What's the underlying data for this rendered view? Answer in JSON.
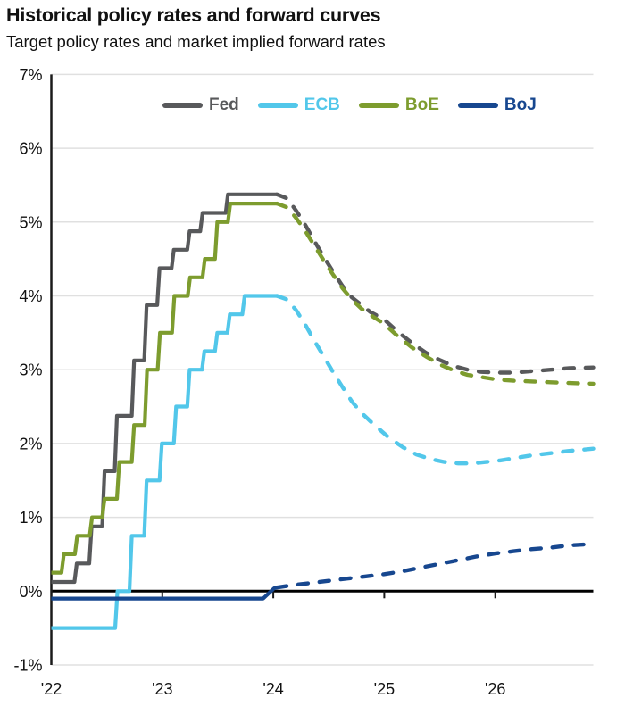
{
  "header": {
    "title": "Historical policy rates and forward curves",
    "subtitle": "Target policy rates and market implied forward rates"
  },
  "legend": {
    "items": [
      {
        "label": "Fed",
        "color": "#58595b"
      },
      {
        "label": "ECB",
        "color": "#52c7ea"
      },
      {
        "label": "BoE",
        "color": "#7d9c2e"
      },
      {
        "label": "BoJ",
        "color": "#17478f"
      }
    ]
  },
  "chart_data": {
    "type": "line",
    "title": "Historical policy rates and forward curves",
    "subtitle": "Target policy rates and market implied forward rates",
    "x_unit": "months since Jan 2022",
    "xlim": [
      0,
      58.6
    ],
    "ylim": [
      -1,
      7
    ],
    "grid": true,
    "legend_position": "top-center",
    "line_meaning": {
      "solid": "historical target policy rate",
      "dashed": "market implied forward rate"
    },
    "colors": {
      "grid": "#e0e0e0",
      "axis": "#1a1a1a",
      "zero": "#000000",
      "text": "#111111"
    },
    "x_ticks": [
      {
        "m": 0,
        "label": "'22"
      },
      {
        "m": 12,
        "label": "'23"
      },
      {
        "m": 24,
        "label": "'24"
      },
      {
        "m": 36,
        "label": "'25"
      },
      {
        "m": 48,
        "label": "'26"
      }
    ],
    "y_ticks": [
      {
        "v": 7,
        "label": "7%"
      },
      {
        "v": 6,
        "label": "6%"
      },
      {
        "v": 5,
        "label": "5%"
      },
      {
        "v": 4,
        "label": "4%"
      },
      {
        "v": 3,
        "label": "3%"
      },
      {
        "v": 2,
        "label": "2%"
      },
      {
        "v": 1,
        "label": "1%"
      },
      {
        "v": 0,
        "label": "0%"
      },
      {
        "v": -1,
        "label": "-1%"
      }
    ],
    "series": [
      {
        "name": "Fed",
        "color": "#58595b",
        "solid": [
          [
            0,
            0.125
          ],
          [
            2.5,
            0.125
          ],
          [
            2.75,
            0.375
          ],
          [
            4.1,
            0.375
          ],
          [
            4.35,
            0.875
          ],
          [
            5.5,
            0.875
          ],
          [
            5.75,
            1.625
          ],
          [
            6.85,
            1.625
          ],
          [
            7.1,
            2.375
          ],
          [
            8.7,
            2.375
          ],
          [
            8.95,
            3.125
          ],
          [
            10.05,
            3.125
          ],
          [
            10.3,
            3.875
          ],
          [
            11.45,
            3.875
          ],
          [
            11.7,
            4.375
          ],
          [
            13.0,
            4.375
          ],
          [
            13.25,
            4.625
          ],
          [
            14.7,
            4.625
          ],
          [
            14.95,
            4.875
          ],
          [
            16.1,
            4.875
          ],
          [
            16.35,
            5.125
          ],
          [
            18.85,
            5.125
          ],
          [
            19.1,
            5.375
          ],
          [
            24.4,
            5.375
          ]
        ],
        "dashed": [
          [
            24.4,
            5.375
          ],
          [
            25.5,
            5.32
          ],
          [
            26.5,
            5.15
          ],
          [
            27.5,
            4.95
          ],
          [
            28.5,
            4.73
          ],
          [
            29.5,
            4.52
          ],
          [
            30.5,
            4.32
          ],
          [
            31.5,
            4.13
          ],
          [
            32.5,
            3.98
          ],
          [
            33.5,
            3.88
          ],
          [
            34.5,
            3.78
          ],
          [
            36,
            3.68
          ],
          [
            37.5,
            3.51
          ],
          [
            39,
            3.36
          ],
          [
            40.5,
            3.23
          ],
          [
            42,
            3.13
          ],
          [
            43.5,
            3.05
          ],
          [
            45,
            3.0
          ],
          [
            46.5,
            2.97
          ],
          [
            48,
            2.96
          ],
          [
            50,
            2.96
          ],
          [
            52,
            2.98
          ],
          [
            54,
            3.0
          ],
          [
            56,
            3.02
          ],
          [
            58.6,
            3.03
          ]
        ]
      },
      {
        "name": "ECB",
        "color": "#52c7ea",
        "solid": [
          [
            0,
            -0.5
          ],
          [
            6.9,
            -0.5
          ],
          [
            7.15,
            0.0
          ],
          [
            8.45,
            0.0
          ],
          [
            8.7,
            0.75
          ],
          [
            10.05,
            0.75
          ],
          [
            10.3,
            1.5
          ],
          [
            11.7,
            1.5
          ],
          [
            11.95,
            2.0
          ],
          [
            13.25,
            2.0
          ],
          [
            13.5,
            2.5
          ],
          [
            14.7,
            2.5
          ],
          [
            14.95,
            3.0
          ],
          [
            16.3,
            3.0
          ],
          [
            16.55,
            3.25
          ],
          [
            17.7,
            3.25
          ],
          [
            17.95,
            3.5
          ],
          [
            19.05,
            3.5
          ],
          [
            19.3,
            3.75
          ],
          [
            20.65,
            3.75
          ],
          [
            20.9,
            4.0
          ],
          [
            24.4,
            4.0
          ]
        ],
        "dashed": [
          [
            24.4,
            4.0
          ],
          [
            25.5,
            3.95
          ],
          [
            26.5,
            3.8
          ],
          [
            27.5,
            3.6
          ],
          [
            28.5,
            3.38
          ],
          [
            29.5,
            3.17
          ],
          [
            30.5,
            2.96
          ],
          [
            31.5,
            2.76
          ],
          [
            32.5,
            2.57
          ],
          [
            33.5,
            2.42
          ],
          [
            34.5,
            2.3
          ],
          [
            35.5,
            2.19
          ],
          [
            36.5,
            2.08
          ],
          [
            38,
            1.95
          ],
          [
            39.5,
            1.85
          ],
          [
            41,
            1.79
          ],
          [
            42.5,
            1.75
          ],
          [
            44,
            1.73
          ],
          [
            45.5,
            1.73
          ],
          [
            47,
            1.75
          ],
          [
            48.5,
            1.77
          ],
          [
            50,
            1.8
          ],
          [
            52,
            1.84
          ],
          [
            54,
            1.87
          ],
          [
            56,
            1.9
          ],
          [
            58.6,
            1.93
          ]
        ]
      },
      {
        "name": "BoE",
        "color": "#7d9c2e",
        "solid": [
          [
            0,
            0.25
          ],
          [
            1.1,
            0.25
          ],
          [
            1.35,
            0.5
          ],
          [
            2.55,
            0.5
          ],
          [
            2.8,
            0.75
          ],
          [
            4.15,
            0.75
          ],
          [
            4.4,
            1.0
          ],
          [
            5.5,
            1.0
          ],
          [
            5.75,
            1.25
          ],
          [
            7.1,
            1.25
          ],
          [
            7.35,
            1.75
          ],
          [
            8.7,
            1.75
          ],
          [
            8.95,
            2.25
          ],
          [
            10.1,
            2.25
          ],
          [
            10.35,
            3.0
          ],
          [
            11.5,
            3.0
          ],
          [
            11.75,
            3.5
          ],
          [
            13.05,
            3.5
          ],
          [
            13.3,
            4.0
          ],
          [
            14.75,
            4.0
          ],
          [
            15.0,
            4.25
          ],
          [
            16.35,
            4.25
          ],
          [
            16.6,
            4.5
          ],
          [
            17.7,
            4.5
          ],
          [
            17.95,
            5.0
          ],
          [
            19.1,
            5.0
          ],
          [
            19.35,
            5.25
          ],
          [
            24.4,
            5.25
          ]
        ],
        "dashed": [
          [
            24.4,
            5.25
          ],
          [
            25.5,
            5.2
          ],
          [
            26.5,
            5.05
          ],
          [
            27.5,
            4.87
          ],
          [
            28.5,
            4.67
          ],
          [
            29.5,
            4.47
          ],
          [
            30.5,
            4.28
          ],
          [
            31.5,
            4.1
          ],
          [
            32.5,
            3.95
          ],
          [
            33.5,
            3.83
          ],
          [
            34.5,
            3.74
          ],
          [
            36,
            3.62
          ],
          [
            37.5,
            3.45
          ],
          [
            39,
            3.3
          ],
          [
            40.5,
            3.18
          ],
          [
            42,
            3.07
          ],
          [
            43.5,
            2.99
          ],
          [
            45,
            2.93
          ],
          [
            46.5,
            2.9
          ],
          [
            48,
            2.87
          ],
          [
            50,
            2.85
          ],
          [
            52,
            2.84
          ],
          [
            54,
            2.83
          ],
          [
            56,
            2.82
          ],
          [
            58.6,
            2.81
          ]
        ]
      },
      {
        "name": "BoJ",
        "color": "#17478f",
        "solid": [
          [
            0,
            -0.1
          ],
          [
            22.9,
            -0.1
          ],
          [
            24.1,
            0.04
          ],
          [
            24.4,
            0.05
          ]
        ],
        "dashed": [
          [
            24.4,
            0.05
          ],
          [
            26,
            0.08
          ],
          [
            28,
            0.11
          ],
          [
            30,
            0.14
          ],
          [
            32,
            0.17
          ],
          [
            34,
            0.2
          ],
          [
            36,
            0.23
          ],
          [
            38,
            0.27
          ],
          [
            40,
            0.32
          ],
          [
            42,
            0.37
          ],
          [
            44,
            0.42
          ],
          [
            46,
            0.47
          ],
          [
            48,
            0.51
          ],
          [
            50,
            0.54
          ],
          [
            52,
            0.57
          ],
          [
            54,
            0.59
          ],
          [
            56,
            0.62
          ],
          [
            58.6,
            0.64
          ]
        ]
      }
    ]
  }
}
